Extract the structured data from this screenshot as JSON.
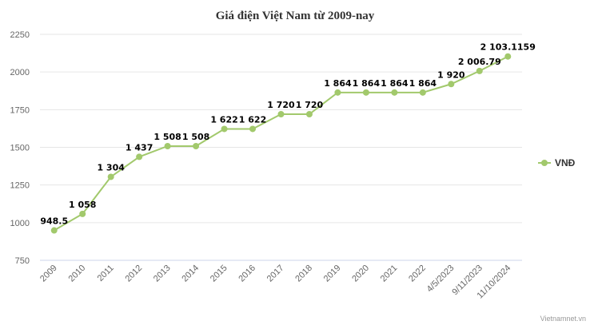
{
  "chart_data": {
    "type": "line",
    "title": "Giá điện Việt Nam từ 2009-nay",
    "xlabel": "",
    "ylabel": "",
    "categories": [
      "2009",
      "2010",
      "2011",
      "2012",
      "2013",
      "2014",
      "2015",
      "2016",
      "2017",
      "2018",
      "2019",
      "2020",
      "2021",
      "2022",
      "4/5/2023",
      "9/11/2023",
      "11/10/2024"
    ],
    "series": [
      {
        "name": "VNĐ",
        "color": "#a2c96c",
        "values": [
          948.5,
          1058,
          1304,
          1437,
          1508,
          1508,
          1622,
          1622,
          1720,
          1720,
          1864,
          1864,
          1864,
          1864,
          1920,
          2006.79,
          2103.1159
        ],
        "labels": [
          "948.5",
          "1 058",
          "1 304",
          "1 437",
          "1 508",
          "1 508",
          "1 622",
          "1 622",
          "1 720",
          "1 720",
          "1 864",
          "1 864",
          "1 864",
          "1 864",
          "1 920",
          "2 006.79",
          "2 103.1159"
        ]
      }
    ],
    "yticks": [
      750,
      1000,
      1250,
      1500,
      1750,
      2000,
      2250
    ],
    "ylim": [
      750,
      2250
    ],
    "grid": true,
    "legend_position": "right"
  },
  "credit": "Vietnamnet.vn"
}
